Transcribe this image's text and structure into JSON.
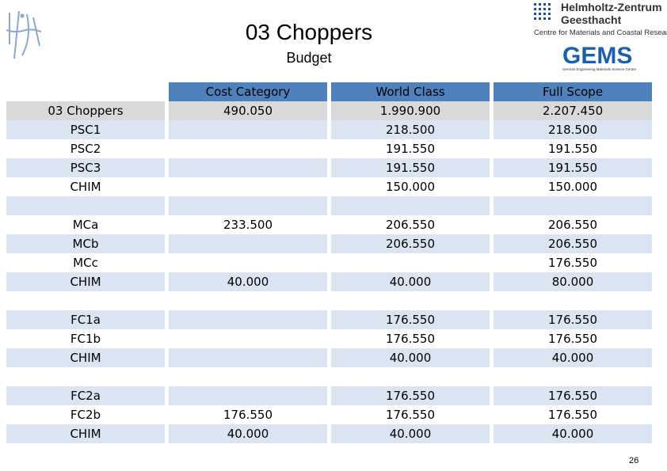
{
  "header": {
    "title": "03 Choppers",
    "subtitle": "Budget",
    "right_logo": {
      "line1": "Helmholtz-Zentrum",
      "line2": "Geesthacht",
      "line3": "Centre for Materials and Coastal Research",
      "gems": "GEMS",
      "gems_sub": "German Engineering Materials Science Centre"
    },
    "left_logo": {
      "label": "ujf"
    }
  },
  "table": {
    "columns": [
      "",
      "Cost Category",
      "World Class",
      "Full Scope"
    ],
    "rows": [
      [
        "03 Choppers",
        "490.050",
        "1.990.900",
        "2.207.450"
      ],
      [
        "PSC1",
        "",
        "218.500",
        "218.500"
      ],
      [
        "PSC2",
        "",
        "191.550",
        "191.550"
      ],
      [
        "PSC3",
        "",
        "191.550",
        "191.550"
      ],
      [
        "CHIM",
        "",
        "150.000",
        "150.000"
      ],
      [
        "",
        "",
        "",
        ""
      ],
      [
        "MCa",
        "233.500",
        "206.550",
        "206.550"
      ],
      [
        "MCb",
        "",
        "206.550",
        "206.550"
      ],
      [
        "MCc",
        "",
        "",
        "176.550"
      ],
      [
        "CHIM",
        "40.000",
        "40.000",
        "80.000"
      ],
      [
        "",
        "",
        "",
        ""
      ],
      [
        "FC1a",
        "",
        "176.550",
        "176.550"
      ],
      [
        "FC1b",
        "",
        "176.550",
        "176.550"
      ],
      [
        "CHIM",
        "",
        "40.000",
        "40.000"
      ],
      [
        "",
        "",
        "",
        ""
      ],
      [
        "FC2a",
        "",
        "176.550",
        "176.550"
      ],
      [
        "FC2b",
        "176.550",
        "176.550",
        "176.550"
      ],
      [
        "CHIM",
        "40.000",
        "40.000",
        "40.000"
      ]
    ]
  },
  "footer": {
    "page_number": "26"
  },
  "colors": {
    "header_blue": "#4f81bd",
    "row_light": "#dbe5f1",
    "row_gray": "#d9d9d9"
  }
}
